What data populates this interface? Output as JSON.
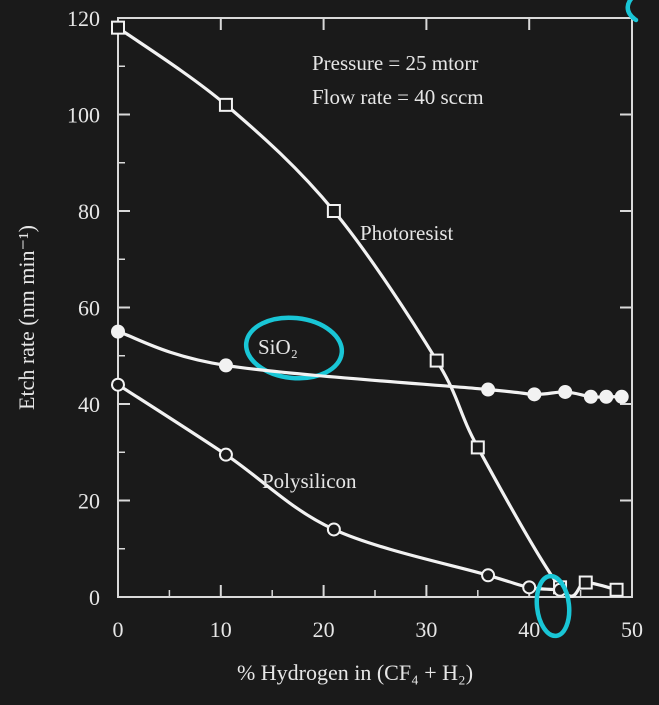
{
  "colors": {
    "background": "#1a1a1a",
    "axis": "#d9d9d9",
    "line": "#f2f2f2",
    "annotation_circle": "#19c6d6"
  },
  "chart_data": {
    "type": "line",
    "xlabel": "% Hydrogen in (CF₄ + H₂)",
    "ylabel": "Etch rate (nm min⁻¹)",
    "xlim": [
      0,
      50
    ],
    "ylim": [
      0,
      120
    ],
    "xticks": [
      0,
      10,
      20,
      30,
      40,
      50
    ],
    "yticks": [
      0,
      20,
      40,
      60,
      80,
      100,
      120
    ],
    "grid": false,
    "notes": [
      "Pressure = 25 mtorr",
      "Flow rate = 40 sccm"
    ],
    "series": [
      {
        "name": "Photoresist",
        "marker": "open-square",
        "x": [
          0,
          10.5,
          21,
          31,
          35,
          43,
          45.5,
          48.5
        ],
        "y": [
          118,
          102,
          80,
          49,
          31,
          2,
          3,
          1.5
        ]
      },
      {
        "name": "SiO₂",
        "marker": "filled-circle",
        "x": [
          0,
          10.5,
          36,
          40.5,
          43.5,
          46,
          47.5,
          49
        ],
        "y": [
          55,
          48,
          43,
          42,
          42.5,
          41.5,
          41.5,
          41.5
        ]
      },
      {
        "name": "Polysilicon",
        "marker": "open-circle",
        "x": [
          0,
          10.5,
          21,
          36,
          40,
          43
        ],
        "y": [
          44,
          29.5,
          14,
          4.5,
          2,
          1.5
        ]
      }
    ]
  }
}
